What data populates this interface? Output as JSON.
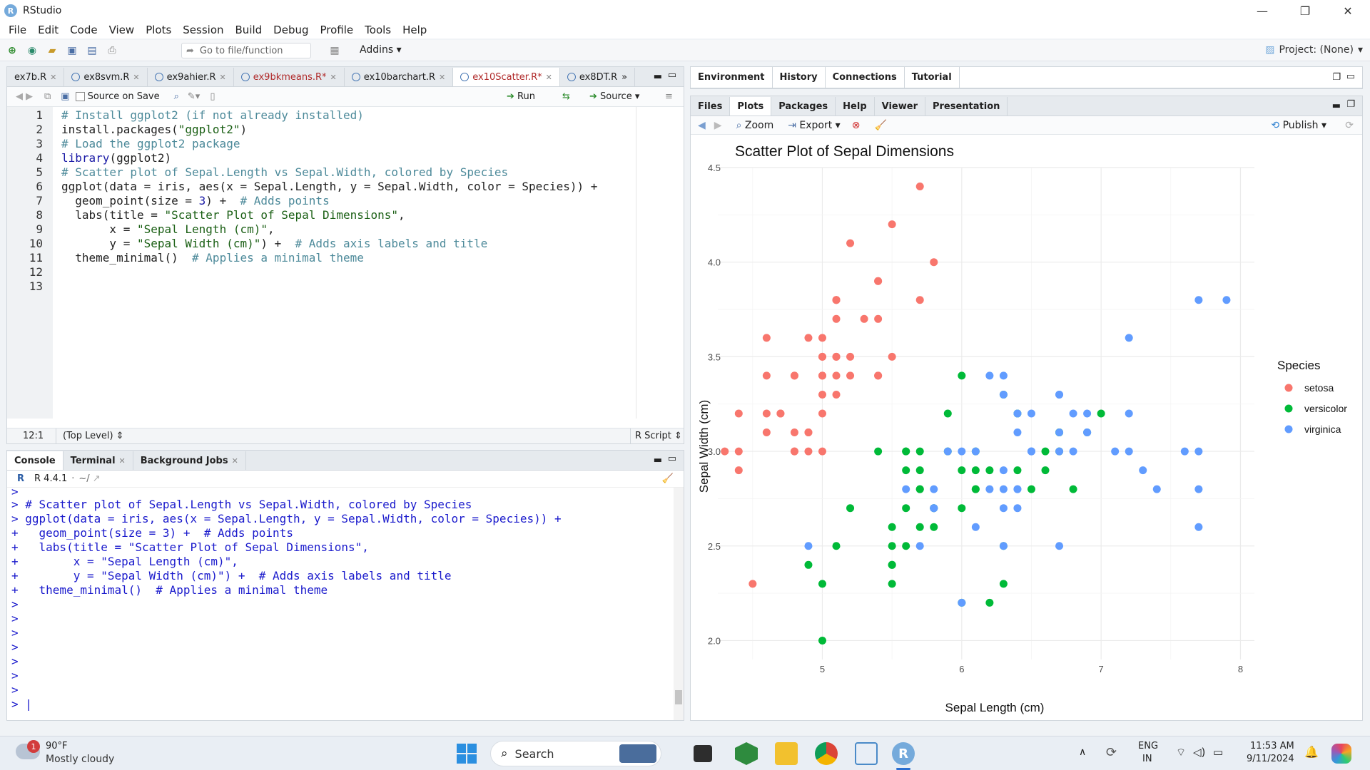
{
  "window": {
    "title": "RStudio",
    "logo_letter": "R",
    "controls": [
      "—",
      "❐",
      "✕"
    ]
  },
  "menu": [
    "File",
    "Edit",
    "Code",
    "View",
    "Plots",
    "Session",
    "Build",
    "Debug",
    "Profile",
    "Tools",
    "Help"
  ],
  "toolbar": {
    "goto_placeholder": "Go to file/function",
    "addins": "Addins",
    "project": "Project: (None)"
  },
  "source": {
    "tabs": [
      {
        "label": "ex7b.R",
        "modified": false
      },
      {
        "label": "ex8svm.R",
        "modified": false
      },
      {
        "label": "ex9ahier.R",
        "modified": false
      },
      {
        "label": "ex9bkmeans.R*",
        "modified": true
      },
      {
        "label": "ex10barchart.R",
        "modified": false
      },
      {
        "label": "ex10Scatter.R*",
        "modified": true,
        "active": true
      },
      {
        "label": "ex8DT.R",
        "modified": false
      }
    ],
    "source_on_save": "Source on Save",
    "run": "Run",
    "source_btn": "Source",
    "line_numbers": [
      "1",
      "2",
      "3",
      "4",
      "5",
      "6",
      "7",
      "8",
      "9",
      "10",
      "11",
      "12",
      "13"
    ],
    "status_pos": "12:1",
    "status_scope": "(Top Level)",
    "status_type": "R Script"
  },
  "console": {
    "tabs": [
      "Console",
      "Terminal",
      "Background Jobs"
    ],
    "version": "R 4.4.1",
    "path": "~/"
  },
  "env": {
    "tabs": [
      "Environment",
      "History",
      "Connections",
      "Tutorial"
    ]
  },
  "files": {
    "tabs": [
      "Files",
      "Plots",
      "Packages",
      "Help",
      "Viewer",
      "Presentation"
    ],
    "active_tab": "Plots",
    "zoom": "Zoom",
    "export": "Export",
    "publish": "Publish"
  },
  "chart_data": {
    "type": "scatter",
    "title": "Scatter Plot of Sepal Dimensions",
    "xlabel": "Sepal Length (cm)",
    "ylabel": "Sepal Width (cm)",
    "xlim": [
      4.25,
      8.1
    ],
    "ylim": [
      1.9,
      4.5
    ],
    "xticks": [
      5,
      6,
      7,
      8
    ],
    "yticks": [
      2.0,
      2.5,
      3.0,
      3.5,
      4.0,
      4.5
    ],
    "legend_title": "Species",
    "legend_position": "right",
    "grid": true,
    "series": [
      {
        "name": "setosa",
        "color": "#F8766D",
        "points": [
          [
            5.1,
            3.5
          ],
          [
            4.9,
            3.0
          ],
          [
            4.7,
            3.2
          ],
          [
            4.6,
            3.1
          ],
          [
            5.0,
            3.6
          ],
          [
            5.4,
            3.9
          ],
          [
            4.6,
            3.4
          ],
          [
            5.0,
            3.4
          ],
          [
            4.4,
            2.9
          ],
          [
            4.9,
            3.1
          ],
          [
            5.4,
            3.7
          ],
          [
            4.8,
            3.4
          ],
          [
            4.8,
            3.0
          ],
          [
            4.3,
            3.0
          ],
          [
            5.8,
            4.0
          ],
          [
            5.7,
            4.4
          ],
          [
            5.4,
            3.9
          ],
          [
            5.1,
            3.5
          ],
          [
            5.7,
            3.8
          ],
          [
            5.1,
            3.8
          ],
          [
            5.4,
            3.4
          ],
          [
            5.1,
            3.7
          ],
          [
            4.6,
            3.6
          ],
          [
            5.1,
            3.3
          ],
          [
            4.8,
            3.4
          ],
          [
            5.0,
            3.0
          ],
          [
            5.0,
            3.4
          ],
          [
            5.2,
            3.5
          ],
          [
            5.2,
            3.4
          ],
          [
            4.7,
            3.2
          ],
          [
            4.8,
            3.1
          ],
          [
            5.4,
            3.4
          ],
          [
            5.2,
            4.1
          ],
          [
            5.5,
            4.2
          ],
          [
            4.9,
            3.1
          ],
          [
            5.0,
            3.2
          ],
          [
            5.5,
            3.5
          ],
          [
            4.9,
            3.6
          ],
          [
            4.4,
            3.0
          ],
          [
            5.1,
            3.4
          ],
          [
            5.0,
            3.5
          ],
          [
            4.5,
            2.3
          ],
          [
            4.4,
            3.2
          ],
          [
            5.0,
            3.5
          ],
          [
            5.1,
            3.8
          ],
          [
            4.8,
            3.0
          ],
          [
            5.1,
            3.8
          ],
          [
            4.6,
            3.2
          ],
          [
            5.3,
            3.7
          ],
          [
            5.0,
            3.3
          ]
        ]
      },
      {
        "name": "versicolor",
        "color": "#00BA38",
        "points": [
          [
            7.0,
            3.2
          ],
          [
            6.4,
            3.2
          ],
          [
            6.9,
            3.1
          ],
          [
            5.5,
            2.3
          ],
          [
            6.5,
            2.8
          ],
          [
            5.7,
            2.8
          ],
          [
            6.3,
            3.3
          ],
          [
            4.9,
            2.4
          ],
          [
            6.6,
            2.9
          ],
          [
            5.2,
            2.7
          ],
          [
            5.0,
            2.0
          ],
          [
            5.9,
            3.0
          ],
          [
            6.0,
            2.2
          ],
          [
            6.1,
            2.9
          ],
          [
            5.6,
            2.9
          ],
          [
            6.7,
            3.1
          ],
          [
            5.6,
            3.0
          ],
          [
            5.8,
            2.7
          ],
          [
            6.2,
            2.2
          ],
          [
            5.6,
            2.5
          ],
          [
            5.9,
            3.2
          ],
          [
            6.1,
            2.8
          ],
          [
            6.3,
            2.5
          ],
          [
            6.1,
            2.8
          ],
          [
            6.4,
            2.9
          ],
          [
            6.6,
            3.0
          ],
          [
            6.8,
            2.8
          ],
          [
            6.7,
            3.0
          ],
          [
            6.0,
            2.9
          ],
          [
            5.7,
            2.6
          ],
          [
            5.5,
            2.4
          ],
          [
            5.5,
            2.4
          ],
          [
            5.8,
            2.7
          ],
          [
            6.0,
            2.7
          ],
          [
            5.4,
            3.0
          ],
          [
            6.0,
            3.4
          ],
          [
            6.7,
            3.1
          ],
          [
            6.3,
            2.3
          ],
          [
            5.6,
            3.0
          ],
          [
            5.5,
            2.5
          ],
          [
            5.5,
            2.6
          ],
          [
            6.1,
            3.0
          ],
          [
            5.8,
            2.6
          ],
          [
            5.0,
            2.3
          ],
          [
            5.6,
            2.7
          ],
          [
            5.7,
            3.0
          ],
          [
            5.7,
            2.9
          ],
          [
            6.2,
            2.9
          ],
          [
            5.1,
            2.5
          ],
          [
            5.7,
            2.8
          ]
        ]
      },
      {
        "name": "virginica",
        "color": "#619CFF",
        "points": [
          [
            6.3,
            3.3
          ],
          [
            5.8,
            2.7
          ],
          [
            7.1,
            3.0
          ],
          [
            6.3,
            2.9
          ],
          [
            6.5,
            3.0
          ],
          [
            7.6,
            3.0
          ],
          [
            4.9,
            2.5
          ],
          [
            7.3,
            2.9
          ],
          [
            6.7,
            2.5
          ],
          [
            7.2,
            3.6
          ],
          [
            6.5,
            3.2
          ],
          [
            6.4,
            2.7
          ],
          [
            6.8,
            3.0
          ],
          [
            5.7,
            2.5
          ],
          [
            5.8,
            2.8
          ],
          [
            6.4,
            3.2
          ],
          [
            6.5,
            3.0
          ],
          [
            7.7,
            3.8
          ],
          [
            7.7,
            2.6
          ],
          [
            6.0,
            2.2
          ],
          [
            6.9,
            3.2
          ],
          [
            5.6,
            2.8
          ],
          [
            7.7,
            2.8
          ],
          [
            6.3,
            2.7
          ],
          [
            6.7,
            3.3
          ],
          [
            7.2,
            3.2
          ],
          [
            6.2,
            2.8
          ],
          [
            6.1,
            3.0
          ],
          [
            6.4,
            2.8
          ],
          [
            7.2,
            3.0
          ],
          [
            7.4,
            2.8
          ],
          [
            7.9,
            3.8
          ],
          [
            6.4,
            2.8
          ],
          [
            6.3,
            2.8
          ],
          [
            6.1,
            2.6
          ],
          [
            7.7,
            3.0
          ],
          [
            6.3,
            3.4
          ],
          [
            6.4,
            3.1
          ],
          [
            6.0,
            3.0
          ],
          [
            6.9,
            3.1
          ],
          [
            6.7,
            3.1
          ],
          [
            6.9,
            3.1
          ],
          [
            5.8,
            2.7
          ],
          [
            6.8,
            3.2
          ],
          [
            6.7,
            3.3
          ],
          [
            6.7,
            3.0
          ],
          [
            6.3,
            2.5
          ],
          [
            6.5,
            3.0
          ],
          [
            6.2,
            3.4
          ],
          [
            5.9,
            3.0
          ]
        ]
      }
    ]
  },
  "taskbar": {
    "weather_temp": "90°F",
    "weather_desc": "Mostly cloudy",
    "weather_badge": "1",
    "search": "Search",
    "lang1": "ENG",
    "lang2": "IN",
    "time": "11:53 AM",
    "date": "9/11/2024"
  }
}
